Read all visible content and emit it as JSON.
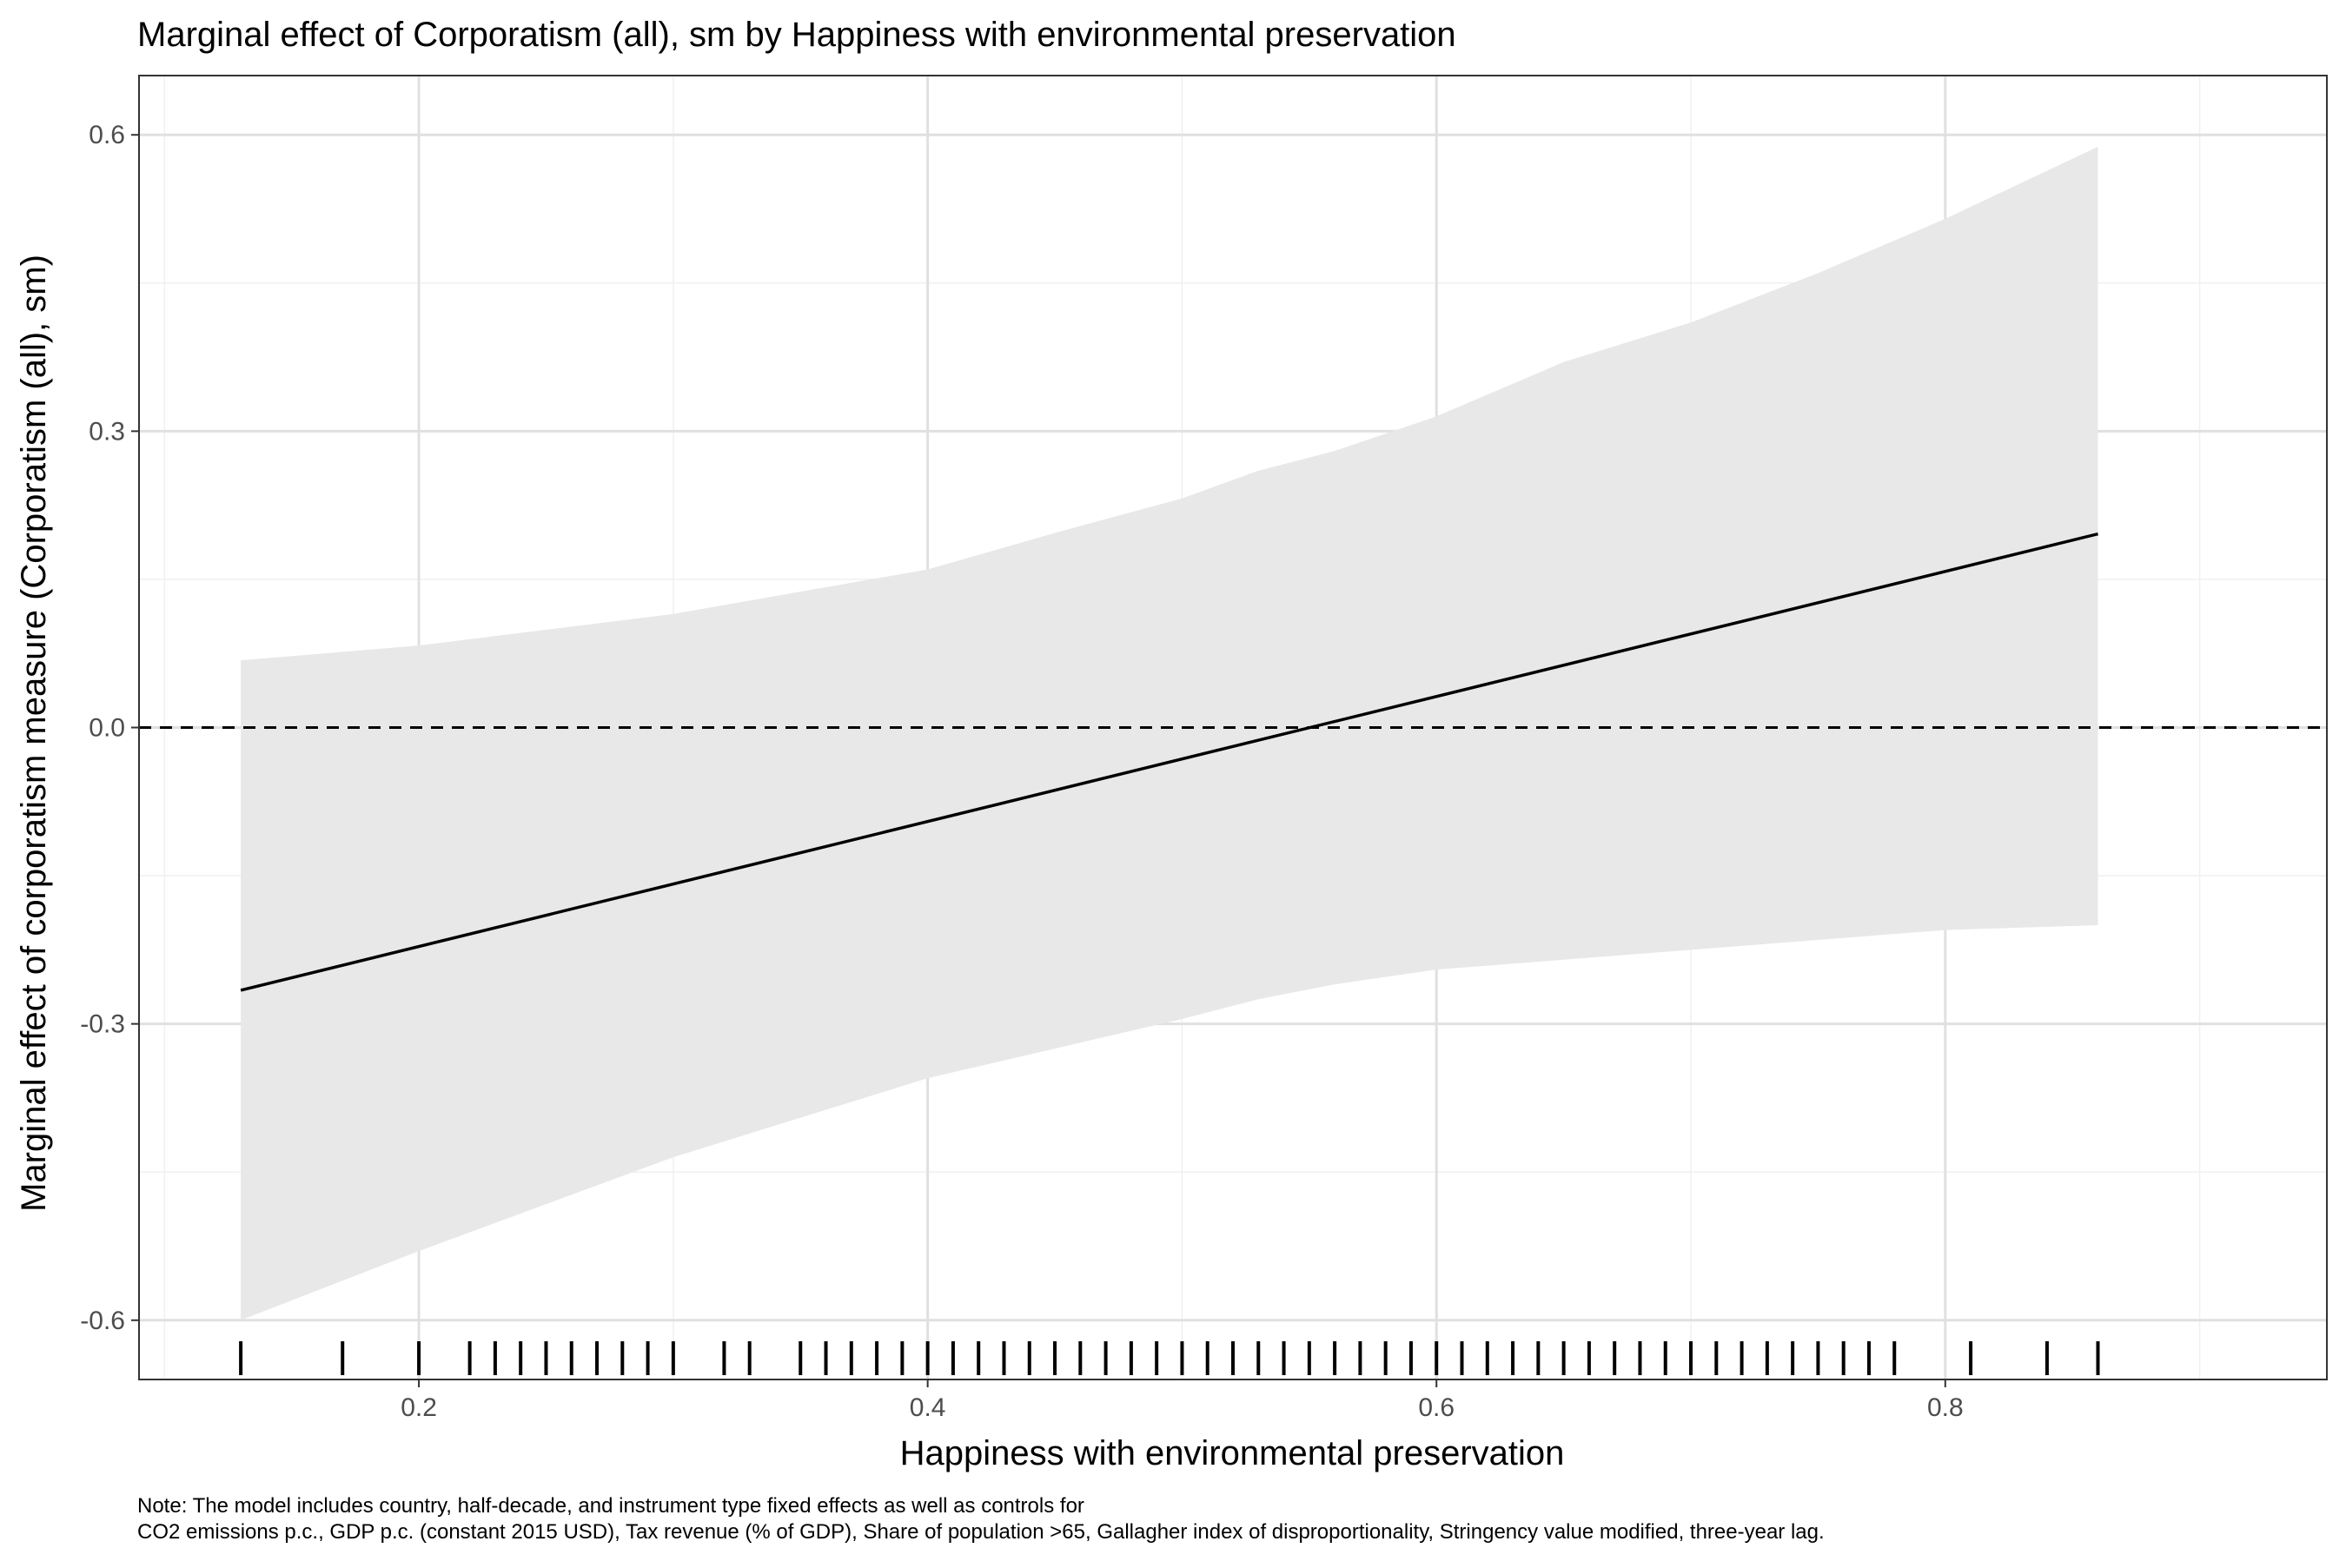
{
  "chart_data": {
    "type": "line",
    "title": "Marginal effect of Corporatism (all), sm by Happiness with environmental preservation",
    "xlabel": "Happiness with environmental preservation",
    "ylabel": "Marginal effect of corporatism measure (Corporatism (all), sm)",
    "xlim": [
      0.09,
      0.95
    ],
    "ylim": [
      -0.66,
      0.66
    ],
    "x_ticks": [
      0.2,
      0.4,
      0.6,
      0.8
    ],
    "x_tick_labels": [
      "0.2",
      "0.4",
      "0.6",
      "0.8"
    ],
    "y_ticks": [
      -0.6,
      -0.3,
      0.0,
      0.3,
      0.6
    ],
    "y_tick_labels": [
      "-0.6",
      "-0.3",
      "0.0",
      "0.3",
      "0.6"
    ],
    "grid": true,
    "reference_line": {
      "y": 0,
      "style": "dashed"
    },
    "series": [
      {
        "type": "line",
        "x": [
          0.13,
          0.86
        ],
        "y": [
          -0.266,
          0.196
        ]
      },
      {
        "type": "band",
        "x": [
          0.13,
          0.2,
          0.3,
          0.4,
          0.45,
          0.5,
          0.53,
          0.56,
          0.6,
          0.65,
          0.7,
          0.75,
          0.8,
          0.86
        ],
        "lower": [
          -0.6,
          -0.53,
          -0.435,
          -0.355,
          -0.325,
          -0.295,
          -0.275,
          -0.26,
          -0.245,
          -0.235,
          -0.225,
          -0.215,
          -0.205,
          -0.2
        ],
        "upper": [
          0.068,
          0.083,
          0.115,
          0.16,
          0.197,
          0.232,
          0.26,
          0.28,
          0.315,
          0.37,
          0.41,
          0.46,
          0.515,
          0.588
        ]
      }
    ],
    "rug_x": [
      0.13,
      0.17,
      0.2,
      0.22,
      0.23,
      0.24,
      0.25,
      0.26,
      0.27,
      0.28,
      0.29,
      0.3,
      0.32,
      0.33,
      0.35,
      0.36,
      0.37,
      0.38,
      0.39,
      0.4,
      0.41,
      0.42,
      0.43,
      0.44,
      0.45,
      0.46,
      0.47,
      0.48,
      0.49,
      0.5,
      0.51,
      0.52,
      0.53,
      0.54,
      0.55,
      0.56,
      0.57,
      0.58,
      0.59,
      0.6,
      0.61,
      0.62,
      0.63,
      0.64,
      0.65,
      0.66,
      0.67,
      0.68,
      0.69,
      0.7,
      0.71,
      0.72,
      0.73,
      0.74,
      0.75,
      0.76,
      0.77,
      0.78,
      0.81,
      0.84,
      0.86
    ],
    "note": [
      "Note: The model includes country, half-decade, and instrument type fixed effects as well as controls for",
      "CO2 emissions p.c., GDP p.c. (constant 2015 USD), Tax revenue (% of GDP), Share of population >65, Gallagher index of disproportionality, Stringency value modified, three-year lag."
    ]
  },
  "colors": {
    "band_fill": "#e8e8e8",
    "line": "#000000",
    "grid_major": "#e0e0e0",
    "grid_minor": "#f0f0f0",
    "panel_border": "#333333",
    "tick_label": "#4d4d4d"
  }
}
